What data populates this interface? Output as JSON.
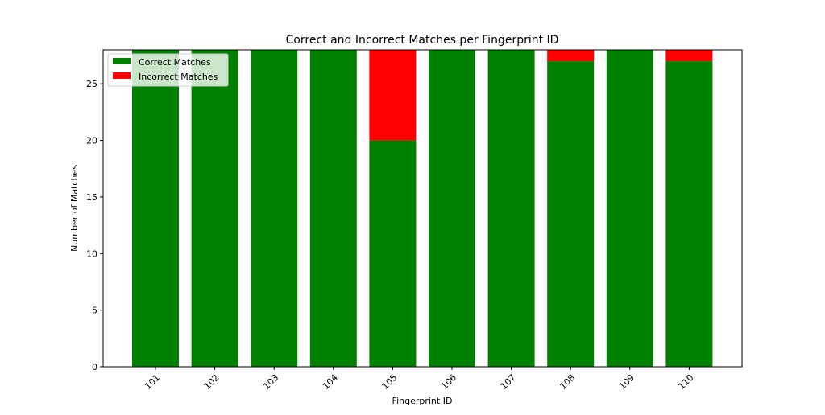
{
  "chart_data": {
    "type": "bar",
    "stacked": true,
    "title": "Correct and Incorrect Matches per Fingerprint ID",
    "xlabel": "Fingerprint ID",
    "ylabel": "Number of Matches",
    "categories": [
      "101",
      "102",
      "103",
      "104",
      "105",
      "106",
      "107",
      "108",
      "109",
      "110"
    ],
    "series": [
      {
        "name": "Correct Matches",
        "color": "#008000",
        "values": [
          28,
          28,
          28,
          28,
          20,
          28,
          28,
          27,
          28,
          27
        ]
      },
      {
        "name": "Incorrect Matches",
        "color": "#ff0000",
        "values": [
          0,
          0,
          0,
          0,
          8,
          0,
          0,
          1,
          0,
          1
        ]
      }
    ],
    "ylim": [
      0,
      28
    ],
    "yticks": [
      "0",
      "5",
      "10",
      "15",
      "20",
      "25"
    ],
    "grid": false,
    "legend_position": "top-left"
  }
}
